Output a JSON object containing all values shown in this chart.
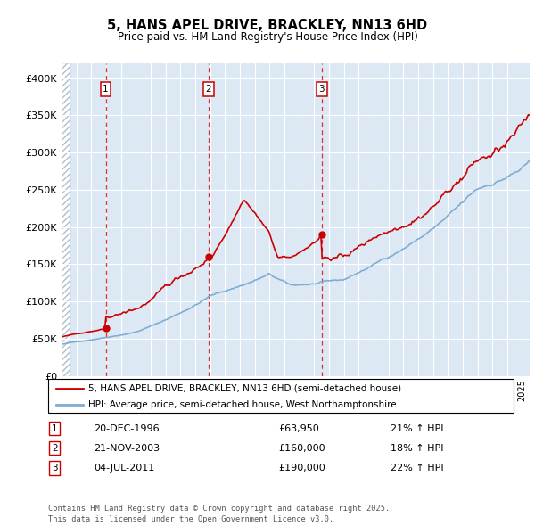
{
  "title1": "5, HANS APEL DRIVE, BRACKLEY, NN13 6HD",
  "title2": "Price paid vs. HM Land Registry's House Price Index (HPI)",
  "legend_line1": "5, HANS APEL DRIVE, BRACKLEY, NN13 6HD (semi-detached house)",
  "legend_line2": "HPI: Average price, semi-detached house, West Northamptonshire",
  "sale_color": "#cc0000",
  "hpi_color": "#7eadd4",
  "background_color": "#dce9f5",
  "hatch_color": "#b0bece",
  "annotations": [
    {
      "num": 1,
      "date": "20-DEC-1996",
      "price": 63950,
      "hpi_pct": "21% ↑ HPI",
      "x": 1996.97
    },
    {
      "num": 2,
      "date": "21-NOV-2003",
      "price": 160000,
      "hpi_pct": "18% ↑ HPI",
      "x": 2003.9
    },
    {
      "num": 3,
      "date": "04-JUL-2011",
      "price": 190000,
      "hpi_pct": "22% ↑ HPI",
      "x": 2011.5
    }
  ],
  "footer": "Contains HM Land Registry data © Crown copyright and database right 2025.\nThis data is licensed under the Open Government Licence v3.0.",
  "ylim": [
    0,
    420000
  ],
  "xlim_start": 1994.0,
  "xlim_end": 2025.5
}
